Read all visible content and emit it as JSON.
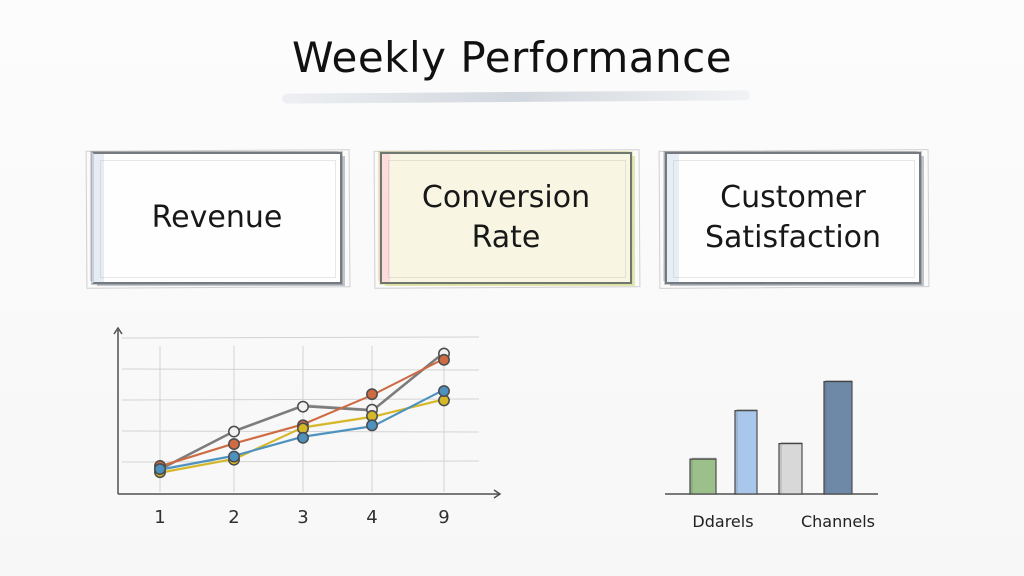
{
  "title": "Weekly Performance",
  "cards": [
    {
      "label": "Revenue"
    },
    {
      "label": "Conversion\nRate"
    },
    {
      "label": "Customer\nSatisfaction"
    }
  ],
  "chart_data": [
    {
      "type": "line",
      "x": [
        "1",
        "2",
        "3",
        "4",
        "9"
      ],
      "series": [
        {
          "color": "#7d7d7d",
          "values": [
            0.8,
            2.0,
            2.8,
            2.7,
            4.5
          ]
        },
        {
          "color": "#ce6b42",
          "values": [
            0.9,
            1.6,
            2.2,
            3.2,
            4.3
          ]
        },
        {
          "color": "#d5b728",
          "values": [
            0.7,
            1.1,
            2.1,
            2.5,
            3.0
          ]
        },
        {
          "color": "#4d92bf",
          "values": [
            0.8,
            1.2,
            1.8,
            2.2,
            3.3
          ]
        }
      ],
      "ylim": [
        0,
        5
      ],
      "grid": true
    },
    {
      "type": "bar",
      "categories": [
        "Ddarels",
        "",
        "Channels",
        ""
      ],
      "values": [
        1.8,
        4.3,
        2.6,
        5.8
      ],
      "colors": [
        "#9bc089",
        "#a9c7ea",
        "#d8d8d8",
        "#6e89a8"
      ],
      "ylim": [
        0,
        6.5
      ]
    }
  ]
}
